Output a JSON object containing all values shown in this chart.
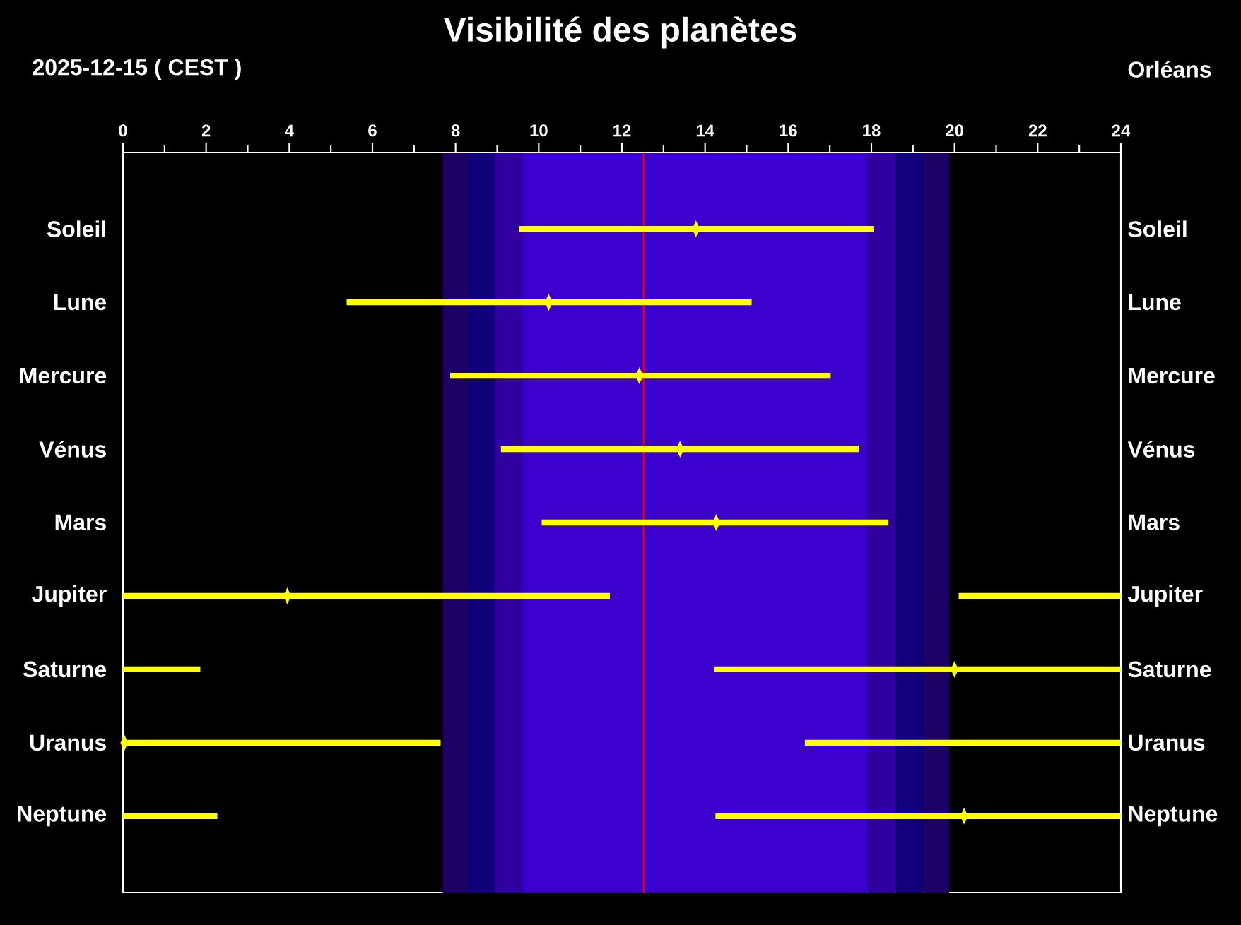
{
  "chart_data": {
    "type": "bar",
    "orientation": "horizontal",
    "title": "Visibilité des planètes",
    "subtitle": "2025-12-15   ( CEST )",
    "annotations": [
      "Orléans"
    ],
    "categories": [
      "Soleil",
      "Lune",
      "Mercure",
      "Vénus",
      "Mars",
      "Jupiter",
      "Saturne",
      "Uranus",
      "Neptune"
    ],
    "series": [
      {
        "color": "#ffff00",
        "base": [
          9.53,
          5.38,
          7.87,
          9.09,
          10.07,
          0,
          0,
          0,
          0
        ],
        "values": [
          8.52,
          9.74,
          9.15,
          8.61,
          8.34,
          11.71,
          1.86,
          7.64,
          2.27
        ]
      },
      {
        "color": "#ffff00",
        "base": [
          null,
          null,
          null,
          null,
          null,
          20.1,
          14.22,
          16.4,
          14.25
        ],
        "values": [
          null,
          null,
          null,
          null,
          null,
          3.9,
          9.78,
          7.6,
          9.75
        ]
      },
      {
        "type": "scatter",
        "color": "#ffff00",
        "values": [
          13.78,
          10.24,
          12.42,
          13.4,
          14.27,
          3.95,
          20.0,
          0.03,
          20.23
        ]
      }
    ],
    "xlim": [
      0,
      24
    ],
    "xticks": [
      0,
      2,
      4,
      6,
      8,
      10,
      12,
      14,
      16,
      18,
      20,
      22,
      24
    ],
    "bands": [
      {
        "axis": "x",
        "from": 7.69,
        "to": 8.32,
        "color": "#1c0066"
      },
      {
        "axis": "x",
        "from": 8.32,
        "to": 8.94,
        "color": "#10007a"
      },
      {
        "axis": "x",
        "from": 8.94,
        "to": 9.62,
        "color": "#3000a0"
      },
      {
        "axis": "x",
        "from": 9.62,
        "to": 17.91,
        "color": "#3c00cc"
      },
      {
        "axis": "x",
        "from": 17.91,
        "to": 18.59,
        "color": "#3000a0"
      },
      {
        "axis": "x",
        "from": 18.59,
        "to": 19.25,
        "color": "#10007a"
      },
      {
        "axis": "x",
        "from": 19.25,
        "to": 19.87,
        "color": "#1c0066"
      }
    ],
    "ref_lines": [
      {
        "axis": "x",
        "value": 12.52,
        "color": "#ff0000"
      }
    ]
  }
}
